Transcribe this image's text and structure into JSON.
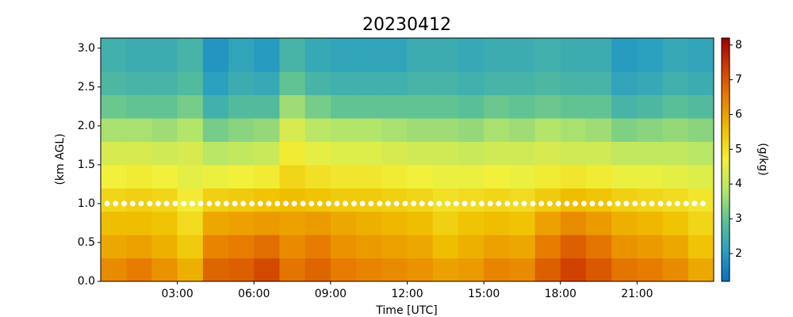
{
  "chart_data": {
    "type": "heatmap",
    "title": "20230412",
    "xlabel": "Time [UTC]",
    "ylabel": "(km AGL)",
    "colorbar_label": "(g/kg)",
    "xlim": [
      0,
      24
    ],
    "ylim": [
      0,
      3.13
    ],
    "xticks": [
      {
        "value": 3,
        "label": "03:00"
      },
      {
        "value": 6,
        "label": "06:00"
      },
      {
        "value": 9,
        "label": "09:00"
      },
      {
        "value": 12,
        "label": "12:00"
      },
      {
        "value": 15,
        "label": "15:00"
      },
      {
        "value": 18,
        "label": "18:00"
      },
      {
        "value": 21,
        "label": "21:00"
      }
    ],
    "yticks": [
      {
        "value": 0,
        "label": "0.0"
      },
      {
        "value": 0.5,
        "label": "0.5"
      },
      {
        "value": 1,
        "label": "1.0"
      },
      {
        "value": 1.5,
        "label": "1.5"
      },
      {
        "value": 2,
        "label": "2.0"
      },
      {
        "value": 2.5,
        "label": "2.5"
      },
      {
        "value": 3,
        "label": "3.0"
      }
    ],
    "clim": [
      1.2,
      8.2
    ],
    "cticks": [
      2,
      3,
      4,
      5,
      6,
      7,
      8
    ],
    "colormap": [
      "#0b6fc0",
      "#2a9fc0",
      "#5cc196",
      "#b6e66a",
      "#f2f03a",
      "#f0c000",
      "#e88000",
      "#d04000",
      "#a00000"
    ],
    "x": [
      0.5,
      1.5,
      2.5,
      3.5,
      4.5,
      5.5,
      6.5,
      7.5,
      8.5,
      9.5,
      10.5,
      11.5,
      12.5,
      13.5,
      14.5,
      15.5,
      16.5,
      17.5,
      18.5,
      19.5,
      20.5,
      21.5,
      22.5,
      23.5
    ],
    "y": [
      0.15,
      0.45,
      0.75,
      1.05,
      1.35,
      1.65,
      1.95,
      2.25,
      2.55,
      2.85
    ],
    "z": [
      [
        6.3,
        6.5,
        6.2,
        5.8,
        6.8,
        6.9,
        7.2,
        6.6,
        6.8,
        6.5,
        6.4,
        6.3,
        6.2,
        6.0,
        6.1,
        6.4,
        6.3,
        6.9,
        7.3,
        7.0,
        6.6,
        6.5,
        6.3,
        5.9
      ],
      [
        5.9,
        6.0,
        5.8,
        5.4,
        6.4,
        6.5,
        6.7,
        6.3,
        6.5,
        6.2,
        6.1,
        6.0,
        5.9,
        5.6,
        5.8,
        6.0,
        5.9,
        6.5,
        6.9,
        6.6,
        6.2,
        6.1,
        5.9,
        5.5
      ],
      [
        5.6,
        5.6,
        5.5,
        5.1,
        5.9,
        6.0,
        6.1,
        6.0,
        6.1,
        5.9,
        5.8,
        5.7,
        5.6,
        5.3,
        5.5,
        5.6,
        5.5,
        6.0,
        6.3,
        6.1,
        5.8,
        5.7,
        5.5,
        5.2
      ],
      [
        5.2,
        5.3,
        5.2,
        4.8,
        5.3,
        5.4,
        5.5,
        5.6,
        5.5,
        5.4,
        5.4,
        5.3,
        5.2,
        5.0,
        5.1,
        5.2,
        5.1,
        5.4,
        5.6,
        5.5,
        5.3,
        5.2,
        5.1,
        4.9
      ],
      [
        4.7,
        4.8,
        4.7,
        4.5,
        4.6,
        4.7,
        4.8,
        5.2,
        5.0,
        4.9,
        4.9,
        4.8,
        4.7,
        4.6,
        4.6,
        4.7,
        4.6,
        4.8,
        4.9,
        4.8,
        4.6,
        4.6,
        4.5,
        4.4
      ],
      [
        4.3,
        4.3,
        4.2,
        4.3,
        3.9,
        4.0,
        4.1,
        4.8,
        4.5,
        4.4,
        4.4,
        4.3,
        4.2,
        4.2,
        4.1,
        4.2,
        4.2,
        4.3,
        4.2,
        4.2,
        4.0,
        4.0,
        4.0,
        3.9
      ],
      [
        3.7,
        3.7,
        3.6,
        3.8,
        3.2,
        3.4,
        3.5,
        4.3,
        3.9,
        3.8,
        3.8,
        3.7,
        3.6,
        3.6,
        3.5,
        3.7,
        3.6,
        3.8,
        3.7,
        3.6,
        3.3,
        3.4,
        3.5,
        3.4
      ],
      [
        3.1,
        3.0,
        3.0,
        3.2,
        2.5,
        2.8,
        2.8,
        3.6,
        3.2,
        3.0,
        3.0,
        3.0,
        3.0,
        3.0,
        2.9,
        3.1,
        3.0,
        3.1,
        3.0,
        3.0,
        2.6,
        2.7,
        2.9,
        2.8
      ],
      [
        2.7,
        2.6,
        2.6,
        2.8,
        2.1,
        2.4,
        2.3,
        3.0,
        2.6,
        2.5,
        2.5,
        2.5,
        2.6,
        2.6,
        2.5,
        2.6,
        2.6,
        2.7,
        2.6,
        2.6,
        2.2,
        2.3,
        2.5,
        2.4
      ],
      [
        2.5,
        2.4,
        2.4,
        2.6,
        1.9,
        2.2,
        2.0,
        2.6,
        2.3,
        2.2,
        2.2,
        2.2,
        2.4,
        2.4,
        2.3,
        2.4,
        2.4,
        2.5,
        2.4,
        2.4,
        2.0,
        2.1,
        2.3,
        2.2
      ]
    ],
    "markers": {
      "color": "#ffffff",
      "x": [
        0.25,
        0.58,
        0.92,
        1.25,
        1.58,
        1.92,
        2.25,
        2.58,
        2.92,
        3.25,
        3.58,
        3.92,
        4.25,
        4.58,
        4.92,
        5.25,
        5.58,
        5.92,
        6.25,
        6.58,
        6.92,
        7.25,
        7.58,
        7.92,
        8.25,
        8.58,
        8.92,
        9.25,
        9.58,
        9.92,
        10.25,
        10.58,
        10.92,
        11.25,
        11.58,
        11.92,
        12.25,
        12.58,
        12.92,
        13.25,
        13.58,
        13.92,
        14.25,
        14.58,
        14.92,
        15.25,
        15.58,
        15.92,
        16.25,
        16.58,
        16.92,
        17.25,
        17.58,
        17.92,
        18.25,
        18.58,
        18.92,
        19.25,
        19.58,
        19.92,
        20.25,
        20.58,
        20.92,
        21.25,
        21.58,
        21.92,
        22.25,
        22.58,
        22.92,
        23.25,
        23.58
      ],
      "y": [
        1,
        1,
        1,
        1,
        1,
        1,
        1,
        1,
        1,
        1,
        1,
        1,
        1,
        1,
        1,
        1,
        1,
        1,
        1,
        1,
        1,
        1,
        1,
        1,
        1,
        1,
        1,
        1,
        1,
        1,
        1,
        1,
        1,
        1,
        1,
        1,
        1,
        1,
        1,
        1,
        1,
        1,
        1,
        1,
        1,
        1,
        1,
        1,
        1,
        1,
        1,
        1,
        1,
        1,
        1,
        1,
        1,
        1,
        1,
        1,
        1,
        1,
        1,
        1,
        1,
        1,
        1,
        1,
        1,
        1,
        1
      ]
    }
  }
}
